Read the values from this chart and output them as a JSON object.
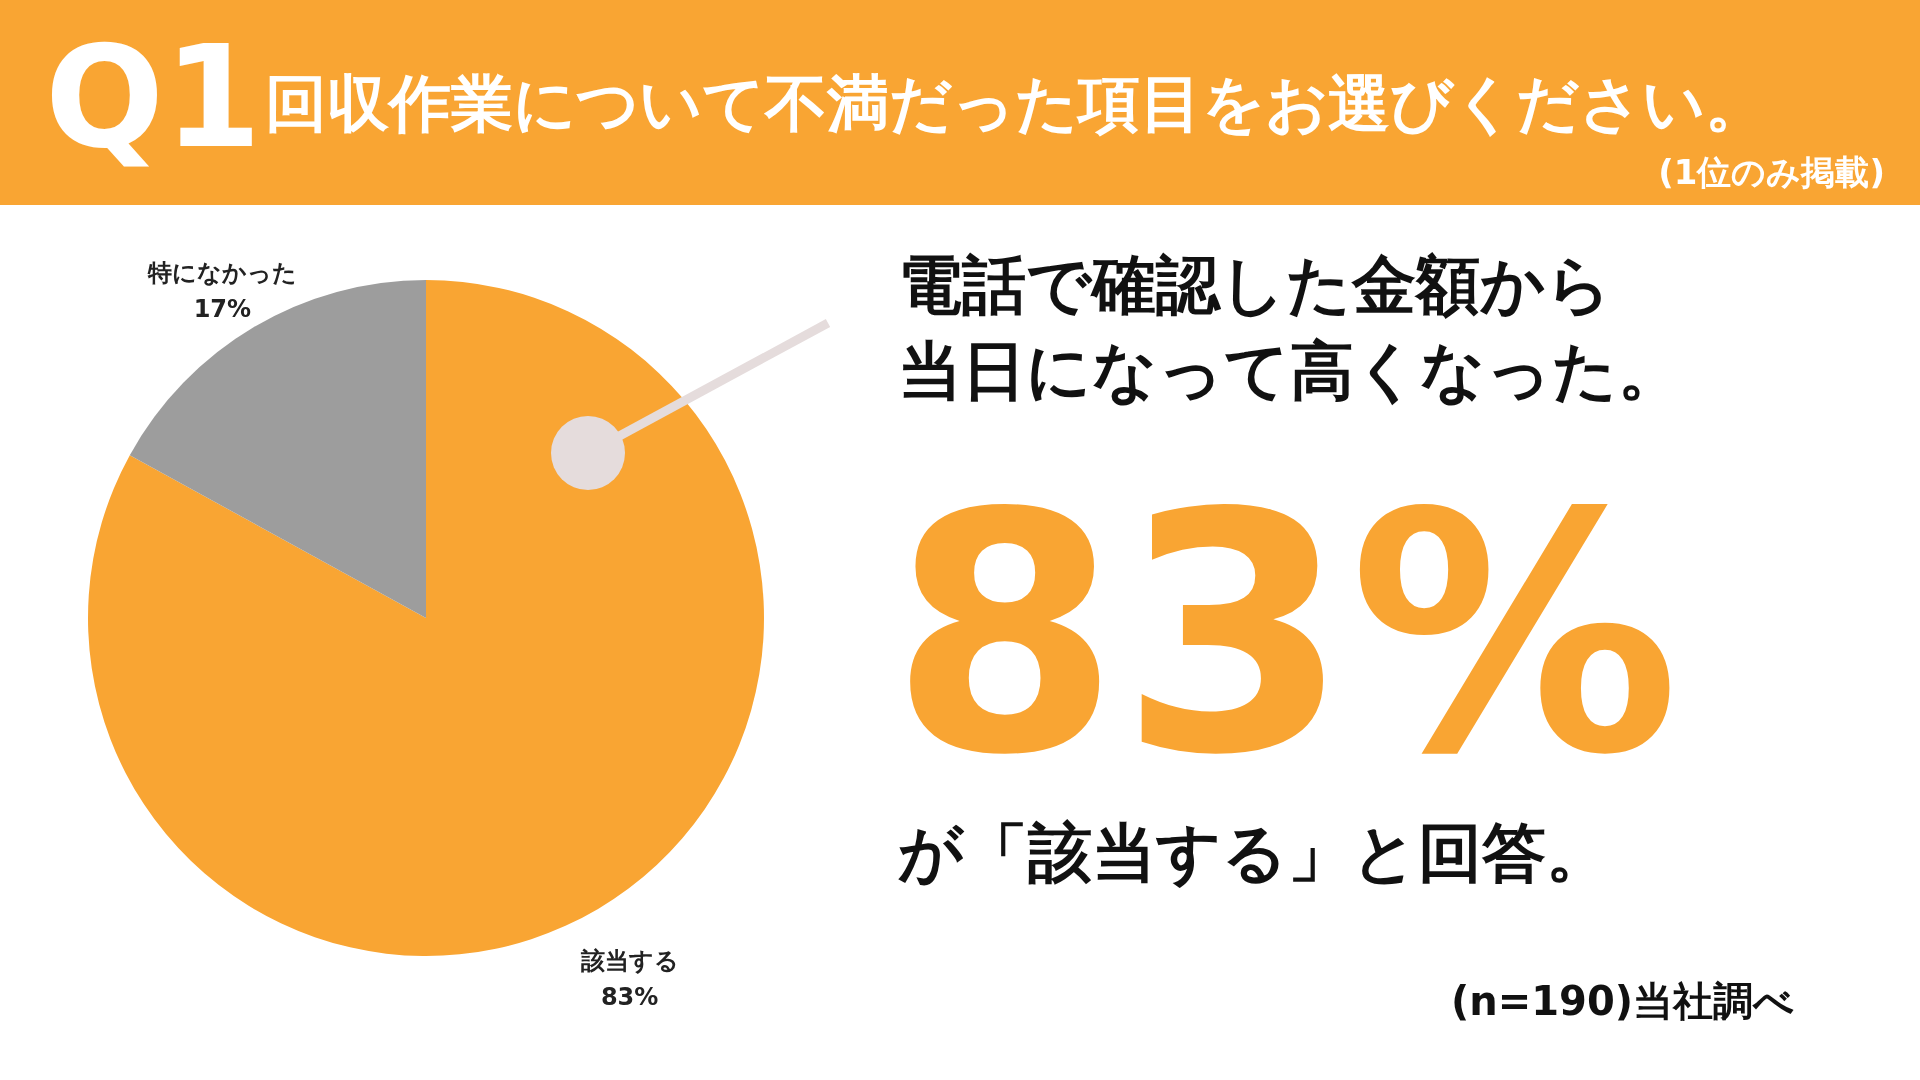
{
  "chart_data": {
    "type": "pie",
    "title": "回収作業について不満だった項目をお選びください。",
    "subtitle": "(1位のみ掲載)",
    "categories": [
      "該当する",
      "特になかった"
    ],
    "values": [
      83,
      17
    ],
    "colors": [
      "#f9a533",
      "#9d9d9d"
    ],
    "value_labels": [
      "83%",
      "17%"
    ],
    "annotations": [
      "Q1",
      "電話で確認した金額から",
      "当日になって高くなった。",
      "83%",
      "が「該当する」と回答。",
      "(n=190)当社調べ"
    ]
  }
}
